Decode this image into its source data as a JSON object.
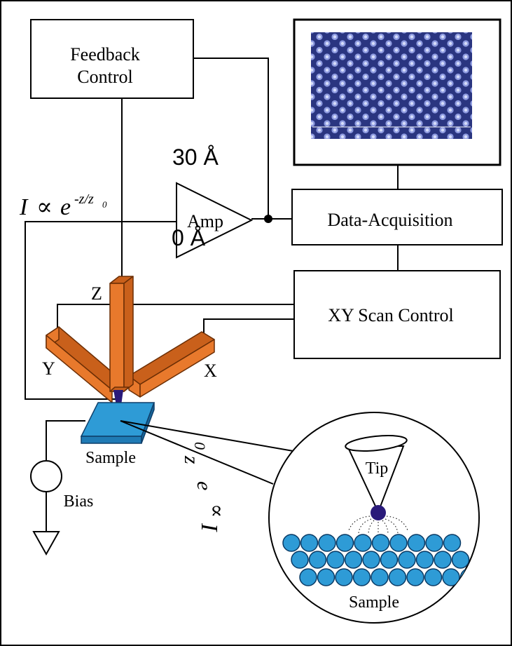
{
  "labels": {
    "feedback_line1": "Feedback",
    "feedback_line2": "Control",
    "scale_top": "30 Å",
    "scale_bottom": "0 Å",
    "amp": "Amp",
    "data_acquisition": "Data-Acquisition",
    "xy_scan": "XY Scan Control",
    "axis_z": "Z",
    "axis_y": "Y",
    "axis_x": "X",
    "sample": "Sample",
    "bias": "Bias",
    "tip": "Tip",
    "inset_sample": "Sample"
  },
  "formula": {
    "I": "I",
    "prop": "∝",
    "e": "e",
    "exponent": "-z/z",
    "sub": "0"
  },
  "rotated_formula": {
    "z": "z",
    "sub": "0",
    "e": "e",
    "prop": "∝",
    "I": "I"
  },
  "colors": {
    "piezo_front": "#E8792C",
    "piezo_side": "#C9601B",
    "sample_top": "#2E9BD6",
    "atom": "#2E9BD6",
    "tip_dot": "#2A1A7A",
    "stm_dark": "#1B1F5C",
    "stm_light": "#C8D2F5"
  }
}
